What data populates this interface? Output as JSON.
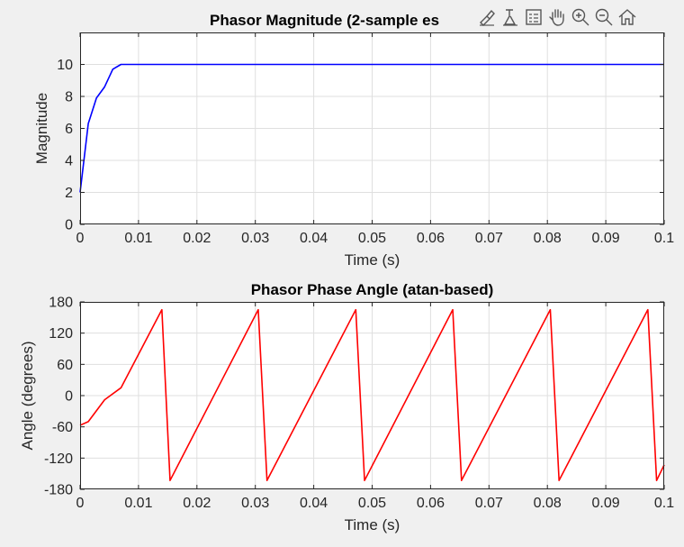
{
  "colors": {
    "background": "#f0f0f0",
    "axes_bg": "#ffffff",
    "grid": "#dfdfdf",
    "axis": "#262626",
    "magnitude": "#0000ff",
    "phase": "#ff0000"
  },
  "toolbar": {
    "icons": [
      "brush-icon",
      "data-tips-icon",
      "legend-icon",
      "pan-icon",
      "zoom-in-icon",
      "zoom-out-icon",
      "home-icon"
    ]
  },
  "chart_data": [
    {
      "type": "line",
      "title": "Phasor Magnitude (2-sample es",
      "xlabel": "Time (s)",
      "ylabel": "Magnitude",
      "xlim": [
        0,
        0.1
      ],
      "ylim": [
        0,
        12
      ],
      "xticks": [
        0,
        0.01,
        0.02,
        0.03,
        0.04,
        0.05,
        0.06,
        0.07,
        0.08,
        0.09,
        0.1
      ],
      "xtick_labels": [
        "0",
        "0.01",
        "0.02",
        "0.03",
        "0.04",
        "0.05",
        "0.06",
        "0.07",
        "0.08",
        "0.09",
        "0.1"
      ],
      "yticks": [
        0,
        2,
        4,
        6,
        8,
        10
      ],
      "ytick_labels": [
        "0",
        "2",
        "4",
        "6",
        "8",
        "10"
      ],
      "grid": true,
      "series": [
        {
          "color": "#0000ff",
          "x": [
            0,
            0.0014,
            0.0028,
            0.0042,
            0.0056,
            0.007,
            0.1
          ],
          "y": [
            2.0,
            6.3,
            7.9,
            8.6,
            9.7,
            10.0,
            10.0
          ]
        }
      ]
    },
    {
      "type": "line",
      "title": "Phasor Phase Angle (atan-based)",
      "xlabel": "Time (s)",
      "ylabel": "Angle (degrees)",
      "xlim": [
        0,
        0.1
      ],
      "ylim": [
        -180,
        180
      ],
      "xticks": [
        0,
        0.01,
        0.02,
        0.03,
        0.04,
        0.05,
        0.06,
        0.07,
        0.08,
        0.09,
        0.1
      ],
      "xtick_labels": [
        "0",
        "0.01",
        "0.02",
        "0.03",
        "0.04",
        "0.05",
        "0.06",
        "0.07",
        "0.08",
        "0.09",
        "0.1"
      ],
      "yticks": [
        -180,
        -120,
        -60,
        0,
        60,
        120,
        180
      ],
      "ytick_labels": [
        "-180",
        "-120",
        "-60",
        "0",
        "60",
        "120",
        "180"
      ],
      "grid": true,
      "series": [
        {
          "color": "#ff0000",
          "x": [
            0,
            0.0014,
            0.0042,
            0.007,
            0.014,
            0.0154,
            0.0305,
            0.032,
            0.0472,
            0.0487,
            0.0638,
            0.0653,
            0.0805,
            0.082,
            0.0972,
            0.0987,
            0.1
          ],
          "y": [
            -57,
            -50,
            -8,
            15,
            165,
            -163,
            165,
            -163,
            165,
            -163,
            165,
            -163,
            165,
            -163,
            165,
            -163,
            -133
          ]
        }
      ]
    }
  ]
}
